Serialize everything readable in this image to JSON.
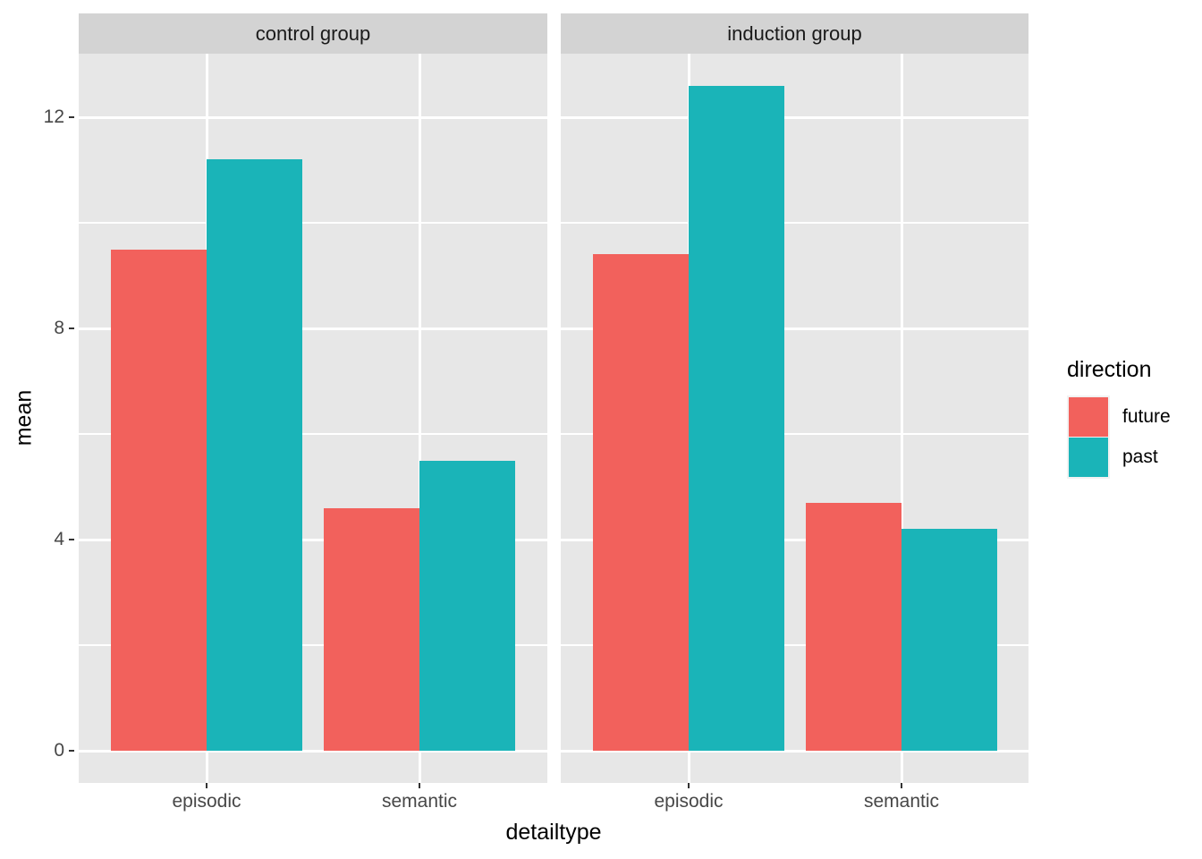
{
  "chart_data": {
    "type": "bar",
    "xlabel": "detailtype",
    "ylabel": "mean",
    "categories": [
      "episodic",
      "semantic"
    ],
    "y_ticks": [
      0,
      4,
      8,
      12
    ],
    "y_minor_ticks": [
      2,
      6,
      10
    ],
    "ylim": [
      -0.6,
      13.2
    ],
    "grid": true,
    "legend": {
      "title": "direction",
      "position": "right",
      "entries": [
        {
          "label": "future",
          "color": "#F2615C"
        },
        {
          "label": "past",
          "color": "#1AB4B8"
        }
      ]
    },
    "panel_bg": "#E7E7E7",
    "strip_bg": "#D3D3D3",
    "grid_color": "#FFFFFF",
    "facets": [
      {
        "label": "control group",
        "series": [
          {
            "name": "future",
            "values": [
              9.5,
              4.6
            ]
          },
          {
            "name": "past",
            "values": [
              11.2,
              5.5
            ]
          }
        ]
      },
      {
        "label": "induction group",
        "series": [
          {
            "name": "future",
            "values": [
              9.4,
              4.7
            ]
          },
          {
            "name": "past",
            "values": [
              12.6,
              4.2
            ]
          }
        ]
      }
    ]
  }
}
